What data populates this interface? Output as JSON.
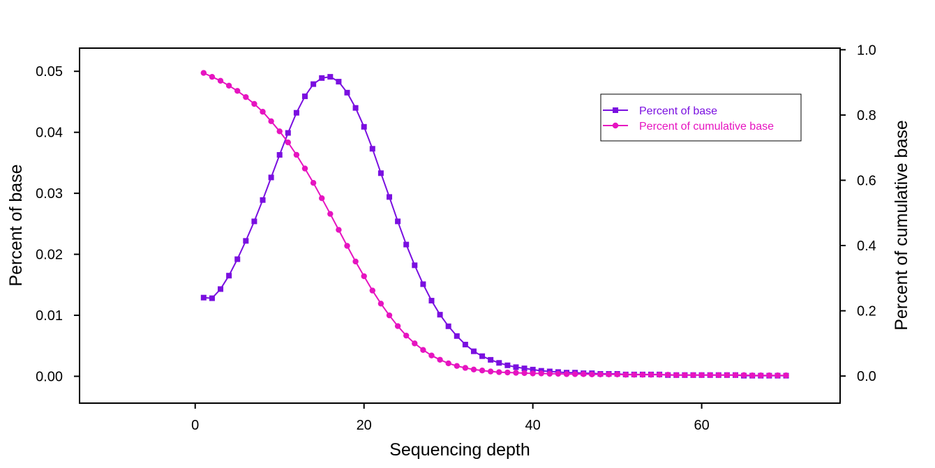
{
  "chart_data": {
    "type": "line",
    "title": "",
    "xlabel": "Sequencing depth",
    "ylabel": "Percent of base",
    "y2label": "Percent of cumulative base",
    "xlim": [
      -13.7,
      76.4
    ],
    "ylim": [
      -0.0044,
      0.0538
    ],
    "y2lim": [
      -0.083,
      1.005
    ],
    "xticks": [
      0,
      20,
      40,
      60
    ],
    "xtick_labels": [
      "0",
      "20",
      "40",
      "60"
    ],
    "yticks": [
      0,
      0.01,
      0.02,
      0.03,
      0.04,
      0.05
    ],
    "ytick_labels": [
      "0.00",
      "0.01",
      "0.02",
      "0.03",
      "0.04",
      "0.05"
    ],
    "y2ticks": [
      0,
      0.2,
      0.4,
      0.6,
      0.8,
      1.0
    ],
    "y2tick_labels": [
      "0.0",
      "0.2",
      "0.4",
      "0.6",
      "0.8",
      "1.0"
    ],
    "grid": false,
    "legend_position": "top-right",
    "x": [
      1,
      2,
      3,
      4,
      5,
      6,
      7,
      8,
      9,
      10,
      11,
      12,
      13,
      14,
      15,
      16,
      17,
      18,
      19,
      20,
      21,
      22,
      23,
      24,
      25,
      26,
      27,
      28,
      29,
      30,
      31,
      32,
      33,
      34,
      35,
      36,
      37,
      38,
      39,
      40,
      41,
      42,
      43,
      44,
      45,
      46,
      47,
      48,
      49,
      50,
      51,
      52,
      53,
      54,
      55,
      56,
      57,
      58,
      59,
      60,
      61,
      62,
      63,
      64,
      65,
      66,
      67,
      68,
      69,
      70
    ],
    "series": [
      {
        "name": "Percent of base",
        "color": "#7a0fe0",
        "marker": "square",
        "axis": "left",
        "values": [
          0.0129,
          0.0128,
          0.0143,
          0.0165,
          0.0192,
          0.0222,
          0.0254,
          0.0289,
          0.0326,
          0.0363,
          0.0399,
          0.0432,
          0.0459,
          0.0479,
          0.0489,
          0.0491,
          0.0483,
          0.0465,
          0.044,
          0.0409,
          0.0373,
          0.0333,
          0.0294,
          0.0254,
          0.0216,
          0.0182,
          0.0151,
          0.0124,
          0.0101,
          0.0082,
          0.0066,
          0.0052,
          0.0041,
          0.0033,
          0.0027,
          0.0022,
          0.0018,
          0.0015,
          0.0013,
          0.0011,
          0.0009,
          0.0008,
          0.0007,
          0.0006,
          0.0006,
          0.0005,
          0.0005,
          0.0004,
          0.0004,
          0.0004,
          0.0003,
          0.0003,
          0.0003,
          0.0003,
          0.0003,
          0.0002,
          0.0002,
          0.0002,
          0.0002,
          0.0002,
          0.0002,
          0.0002,
          0.0002,
          0.0002,
          0.0001,
          0.0001,
          0.0001,
          0.0001,
          0.0001,
          0.0001
        ]
      },
      {
        "name": "Percent of cumulative base",
        "color": "#e614c0",
        "marker": "circle",
        "axis": "right",
        "values": [
          0.929,
          0.917,
          0.905,
          0.89,
          0.874,
          0.855,
          0.834,
          0.81,
          0.781,
          0.75,
          0.716,
          0.678,
          0.636,
          0.592,
          0.545,
          0.497,
          0.448,
          0.399,
          0.351,
          0.306,
          0.262,
          0.222,
          0.186,
          0.153,
          0.124,
          0.1,
          0.08,
          0.063,
          0.05,
          0.039,
          0.031,
          0.025,
          0.02,
          0.017,
          0.014,
          0.012,
          0.011,
          0.01,
          0.009,
          0.008,
          0.008,
          0.007,
          0.007,
          0.006,
          0.006,
          0.006,
          0.005,
          0.005,
          0.005,
          0.005,
          0.004,
          0.004,
          0.004,
          0.004,
          0.004,
          0.004,
          0.003,
          0.003,
          0.003,
          0.003,
          0.003,
          0.003,
          0.003,
          0.003,
          0.003,
          0.002,
          0.002,
          0.002,
          0.002,
          0.002
        ]
      }
    ]
  }
}
